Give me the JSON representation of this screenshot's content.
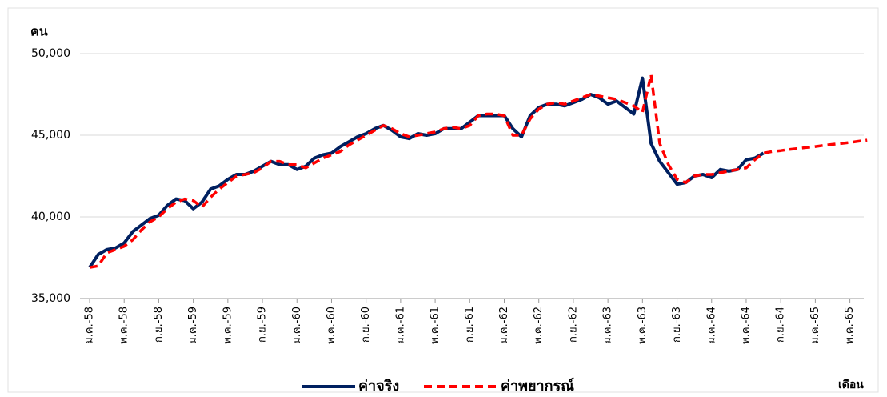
{
  "chart_data": {
    "type": "line",
    "y_axis_label": "คน",
    "x_axis_label": "เดือน",
    "categories": [
      "ม.ค.-58",
      null,
      null,
      null,
      "พ.ค.-58",
      null,
      null,
      null,
      "ก.ย.-58",
      null,
      null,
      null,
      "ม.ค.-59",
      null,
      null,
      null,
      "พ.ค.-59",
      null,
      null,
      null,
      "ก.ย.-59",
      null,
      null,
      null,
      "ม.ค.-60",
      null,
      null,
      null,
      "พ.ค.-60",
      null,
      null,
      null,
      "ก.ย.-60",
      null,
      null,
      null,
      "ม.ค.-61",
      null,
      null,
      null,
      "พ.ค.-61",
      null,
      null,
      null,
      "ก.ย.-61",
      null,
      null,
      null,
      "ม.ค.-62",
      null,
      null,
      null,
      "พ.ค.-62",
      null,
      null,
      null,
      "ก.ย.-62",
      null,
      null,
      null,
      "ม.ค.-63",
      null,
      null,
      null,
      "พ.ค.-63",
      null,
      null,
      null,
      "ก.ย.-63",
      null,
      null,
      null,
      "ม.ค.-64",
      null,
      null,
      null,
      "พ.ค.-64",
      null,
      null,
      null,
      "ก.ย.-64",
      null,
      null,
      null,
      "ม.ค.-65",
      null,
      null,
      null,
      "พ.ค.-65",
      null,
      null
    ],
    "series": [
      {
        "name": "ค่าจริง",
        "color": "#002060",
        "dash": false,
        "values": [
          36900,
          37700,
          38000,
          38100,
          38400,
          39100,
          39500,
          39900,
          40100,
          40700,
          41100,
          41000,
          40500,
          40900,
          41700,
          41900,
          42300,
          42600,
          42600,
          42800,
          43100,
          43400,
          43200,
          43200,
          42900,
          43100,
          43600,
          43800,
          43900,
          44300,
          44600,
          44900,
          45100,
          45400,
          45600,
          45300,
          44900,
          44800,
          45100,
          45000,
          45100,
          45400,
          45400,
          45400,
          45800,
          46200,
          46200,
          46200,
          46200,
          45400,
          44900,
          46200,
          46700,
          46900,
          46900,
          46800,
          47000,
          47200,
          47500,
          47300,
          46900,
          47100,
          46700,
          46300,
          48500,
          44500,
          43400,
          42700,
          42000,
          42100,
          42500,
          42600,
          42400,
          42900,
          42800,
          42900,
          43500,
          43600,
          43900,
          null,
          null,
          null,
          null,
          null,
          null,
          null,
          null,
          null,
          null,
          null,
          null
        ]
      },
      {
        "name": "ค่าพยากรณ์",
        "color": "#ff0000",
        "dash": true,
        "values": [
          36900,
          37000,
          37800,
          38000,
          38200,
          38600,
          39200,
          39700,
          40000,
          40500,
          40900,
          41100,
          41000,
          40600,
          41200,
          41700,
          42100,
          42500,
          42600,
          42700,
          43000,
          43400,
          43400,
          43200,
          43200,
          43000,
          43300,
          43600,
          43800,
          44000,
          44400,
          44700,
          45000,
          45300,
          45600,
          45400,
          45100,
          44900,
          45000,
          45100,
          45200,
          45400,
          45500,
          45400,
          45600,
          46200,
          46300,
          46300,
          46200,
          45000,
          45000,
          46000,
          46600,
          46900,
          47000,
          46900,
          47100,
          47300,
          47500,
          47400,
          47300,
          47200,
          47000,
          46800,
          46400,
          48700,
          44500,
          43200,
          42300,
          42100,
          42500,
          42600,
          42600,
          42700,
          42800,
          42900,
          43000,
          43500,
          43900,
          44000,
          44060,
          44130,
          44190,
          44250,
          44310,
          44380,
          44440,
          44500,
          44560,
          44630,
          44700
        ]
      }
    ],
    "ylim": [
      35000,
      50000
    ],
    "yticks": [
      {
        "value": 35000,
        "label": "35,000"
      },
      {
        "value": 40000,
        "label": "40,000"
      },
      {
        "value": 45000,
        "label": "45,000"
      },
      {
        "value": 50000,
        "label": "50,000"
      }
    ],
    "grid": true
  }
}
